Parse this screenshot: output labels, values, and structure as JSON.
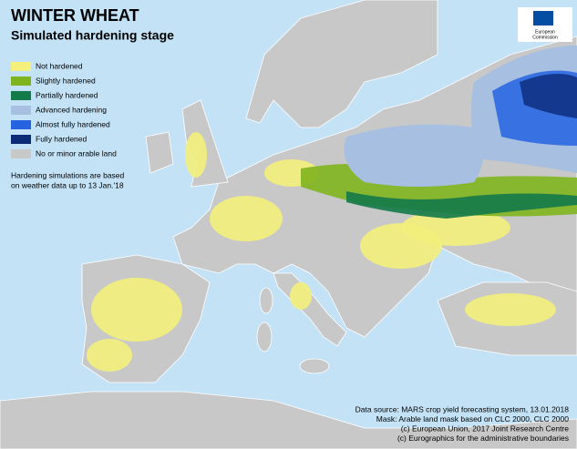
{
  "title": "WINTER WHEAT",
  "subtitle": "Simulated hardening stage",
  "legend": {
    "items": [
      {
        "label": "Not hardened",
        "color": "#f3f07c"
      },
      {
        "label": "Slightly hardened",
        "color": "#80b41e"
      },
      {
        "label": "Partially hardened",
        "color": "#137a4a"
      },
      {
        "label": "Advanced hardening",
        "color": "#a7bfe0"
      },
      {
        "label": "Almost fully hardened",
        "color": "#2563e0"
      },
      {
        "label": "Fully hardened",
        "color": "#0b2a78"
      },
      {
        "label": "No or minor arable land",
        "color": "#c8c8c8"
      }
    ]
  },
  "note": [
    "Hardening simulations are based",
    "on weather data up to 13 Jan.'18"
  ],
  "logo": [
    "European",
    "Commission"
  ],
  "credits": [
    "Data source: MARS crop yield forecasting system, 13.01.2018",
    "Mask: Arable land mask based on CLC 2000, CLC 2000",
    "(c) European Union, 2017 Joint Research Centre",
    "(c) Eurographics for the administrative boundaries"
  ]
}
